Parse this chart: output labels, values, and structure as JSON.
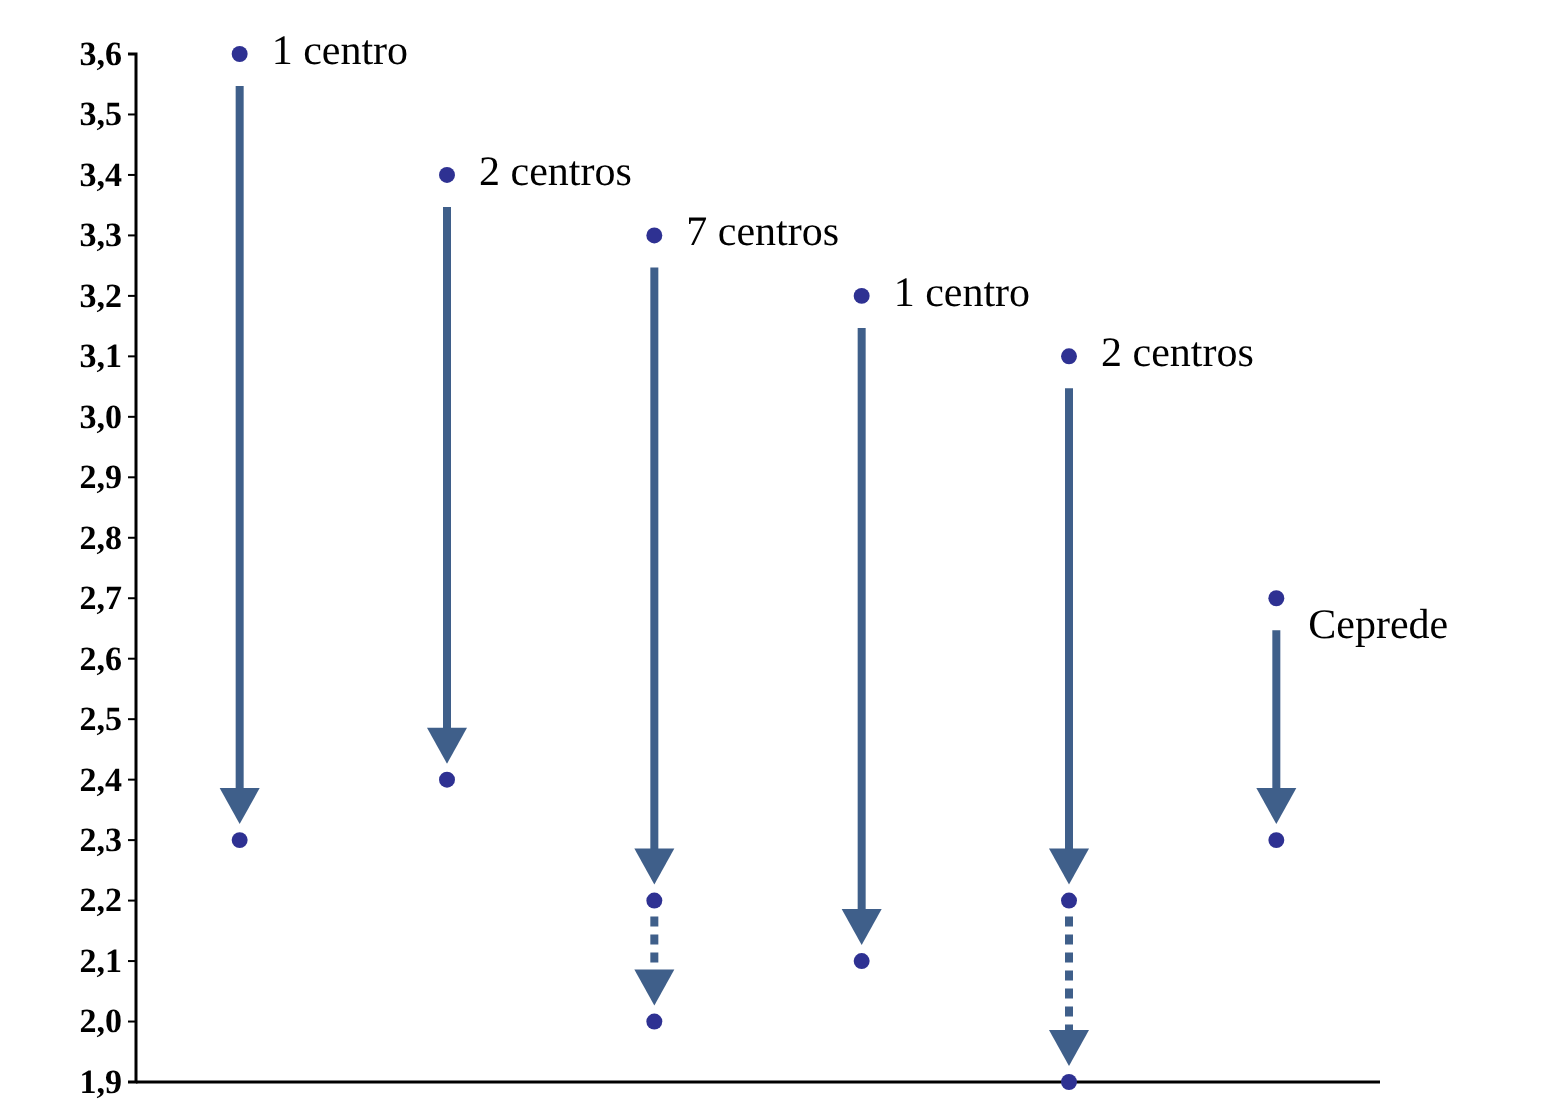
{
  "chart_data": {
    "type": "scatter",
    "categories": [
      null,
      null,
      null,
      null,
      null,
      null
    ],
    "series": [
      {
        "color": "#2e3192",
        "values": [
          3.6,
          3.4,
          3.3,
          3.2,
          3.1,
          2.7
        ]
      },
      {
        "color": "#2e3192",
        "values": [
          2.3,
          2.4,
          2.2,
          2.1,
          2.2,
          2.3
        ]
      },
      {
        "color": "#2e3192",
        "values": [
          null,
          null,
          2.0,
          null,
          1.9,
          null
        ]
      }
    ],
    "ylim": [
      1.9,
      3.6
    ],
    "yticks": [
      {
        "value": 1.9,
        "label": "1,9"
      },
      {
        "value": 2.0,
        "label": "2,0"
      },
      {
        "value": 2.1,
        "label": "2,1"
      },
      {
        "value": 2.2,
        "label": "2,2"
      },
      {
        "value": 2.3,
        "label": "2,3"
      },
      {
        "value": 2.4,
        "label": "2,4"
      },
      {
        "value": 2.5,
        "label": "2,5"
      },
      {
        "value": 2.6,
        "label": "2,6"
      },
      {
        "value": 2.7,
        "label": "2,7"
      },
      {
        "value": 2.8,
        "label": "2,8"
      },
      {
        "value": 2.9,
        "label": "2,9"
      },
      {
        "value": 3.0,
        "label": "3,0"
      },
      {
        "value": 3.1,
        "label": "3,1"
      },
      {
        "value": 3.2,
        "label": "3,2"
      },
      {
        "value": 3.3,
        "label": "3,3"
      },
      {
        "value": 3.4,
        "label": "3,4"
      },
      {
        "value": 3.5,
        "label": "3,5"
      },
      {
        "value": 3.6,
        "label": "3,6"
      }
    ],
    "marker": "circle",
    "tick_labels": "y",
    "annotations": [
      "1 centro",
      "2 centros",
      "7 centros",
      "1 centro",
      "2 centros",
      "Ceprede"
    ]
  }
}
